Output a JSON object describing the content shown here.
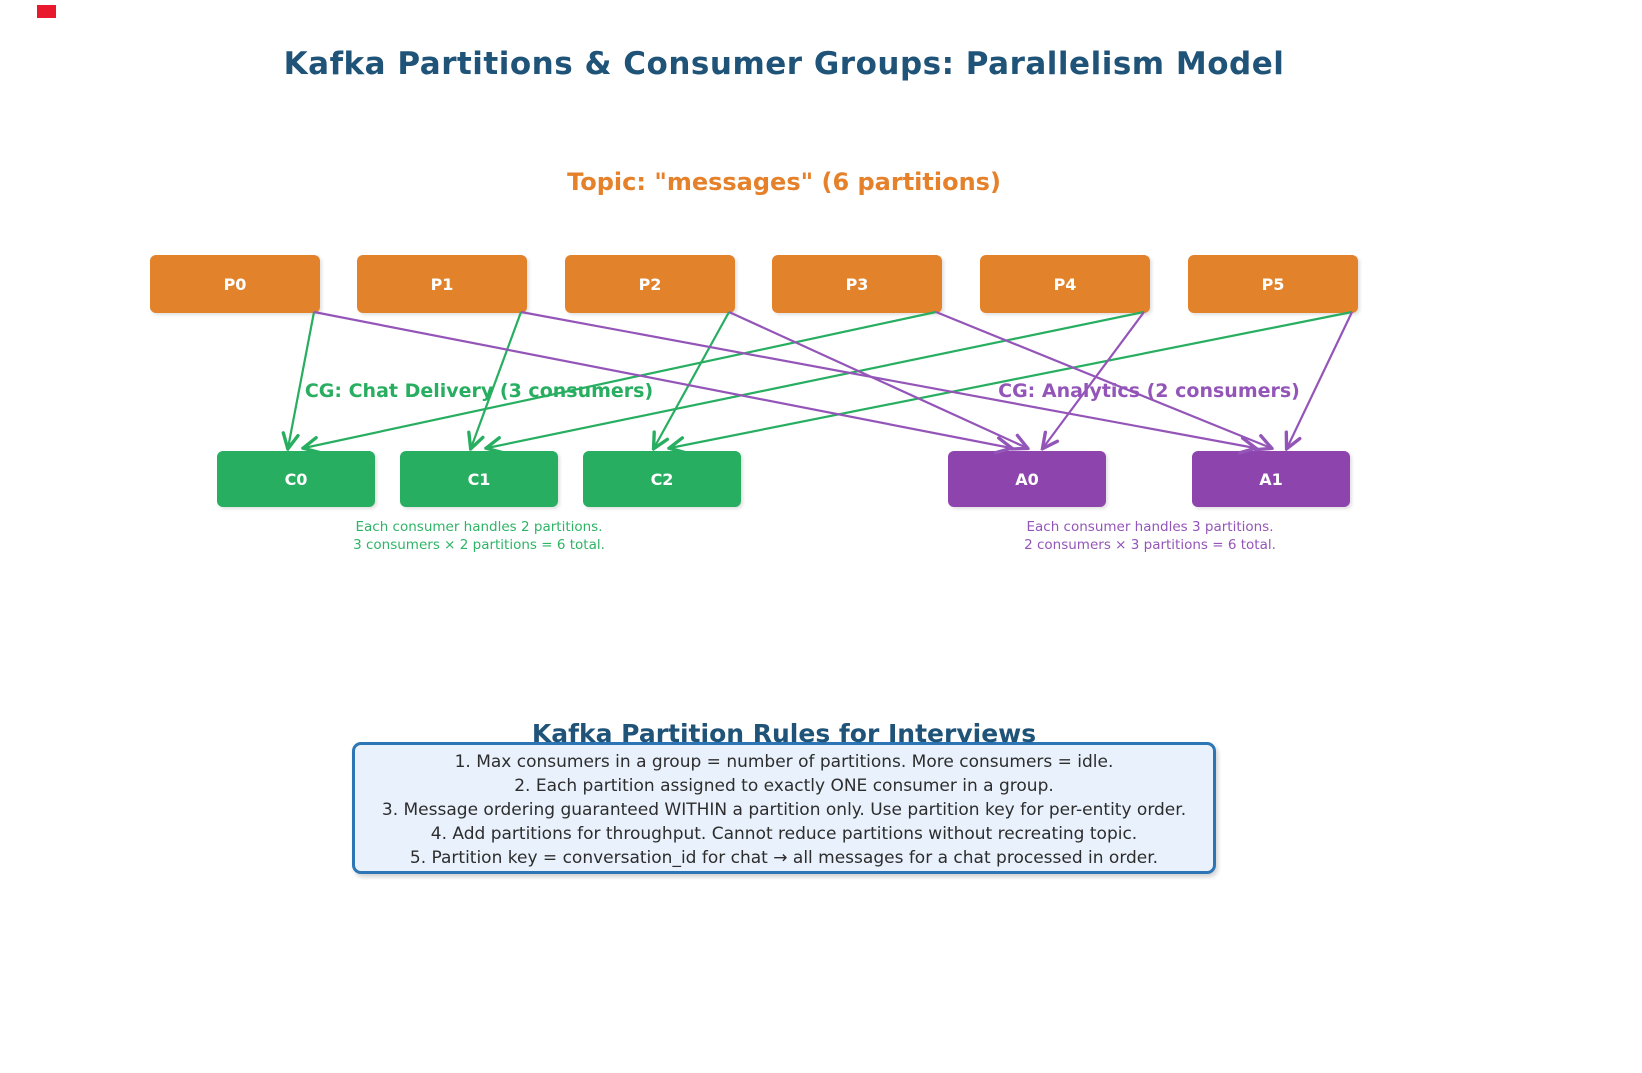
{
  "title": "Kafka Partitions & Consumer Groups: Parallelism Model",
  "topic": {
    "label": "Topic: \"messages\" (6 partitions)"
  },
  "partitions": [
    {
      "id": "P0",
      "label": "P0"
    },
    {
      "id": "P1",
      "label": "P1"
    },
    {
      "id": "P2",
      "label": "P2"
    },
    {
      "id": "P3",
      "label": "P3"
    },
    {
      "id": "P4",
      "label": "P4"
    },
    {
      "id": "P5",
      "label": "P5"
    }
  ],
  "consumer_groups": [
    {
      "id": "chat",
      "label": "CG: Chat Delivery (3 consumers)",
      "color": "#27ae60",
      "consumers": [
        {
          "id": "C0",
          "label": "C0"
        },
        {
          "id": "C1",
          "label": "C1"
        },
        {
          "id": "C2",
          "label": "C2"
        }
      ],
      "note_line1": "Each consumer handles 2 partitions.",
      "note_line2": "3 consumers × 2 partitions = 6 total."
    },
    {
      "id": "analytics",
      "label": "CG: Analytics (2 consumers)",
      "color": "#9455b8",
      "consumers": [
        {
          "id": "A0",
          "label": "A0"
        },
        {
          "id": "A1",
          "label": "A1"
        }
      ],
      "note_line1": "Each consumer handles 3 partitions.",
      "note_line2": "2 consumers × 3 partitions = 6 total."
    }
  ],
  "assignments": [
    {
      "from": "P0",
      "to": "C0",
      "group": "chat"
    },
    {
      "from": "P3",
      "to": "C0",
      "group": "chat"
    },
    {
      "from": "P1",
      "to": "C1",
      "group": "chat"
    },
    {
      "from": "P4",
      "to": "C1",
      "group": "chat"
    },
    {
      "from": "P2",
      "to": "C2",
      "group": "chat"
    },
    {
      "from": "P5",
      "to": "C2",
      "group": "chat"
    },
    {
      "from": "P0",
      "to": "A0",
      "group": "analytics"
    },
    {
      "from": "P2",
      "to": "A0",
      "group": "analytics"
    },
    {
      "from": "P4",
      "to": "A0",
      "group": "analytics"
    },
    {
      "from": "P1",
      "to": "A1",
      "group": "analytics"
    },
    {
      "from": "P3",
      "to": "A1",
      "group": "analytics"
    },
    {
      "from": "P5",
      "to": "A1",
      "group": "analytics"
    }
  ],
  "rules": {
    "heading": "Kafka Partition Rules for Interviews",
    "items": [
      "1. Max consumers in a group = number of partitions. More consumers = idle.",
      "2. Each partition assigned to exactly ONE consumer in a group.",
      "3. Message ordering guaranteed WITHIN a partition only. Use partition key for per-entity order.",
      "4. Add partitions for throughput. Cannot reduce partitions without recreating topic.",
      "5. Partition key = conversation_id for chat → all messages for a chat processed in order."
    ]
  },
  "colors": {
    "title_blue": "#1f5378",
    "orange": "#e2832c",
    "green": "#27ae60",
    "purple_box": "#8e44ad",
    "purple_line": "#9455b8",
    "rules_border": "#2e75b6",
    "rules_bg": "#e9f1fc"
  }
}
